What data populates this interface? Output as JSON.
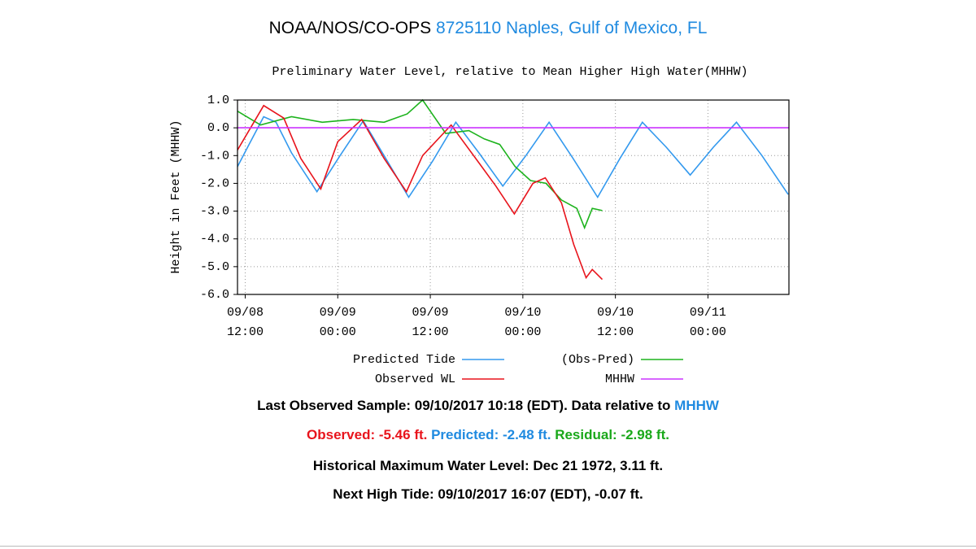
{
  "header": {
    "org": "NOAA/NOS/CO-OPS",
    "station": "8725110 Naples, Gulf of Mexico, FL"
  },
  "chart_data": {
    "type": "line",
    "title": "Preliminary Water Level, relative to Mean Higher High Water(MHHW)",
    "y_label": "Height in Feet (MHHW)",
    "xlim": [
      11,
      82.5
    ],
    "xticks": [
      {
        "value": 12,
        "label": "09/08 12:00"
      },
      {
        "value": 24,
        "label": "09/09 00:00"
      },
      {
        "value": 36,
        "label": "09/09 12:00"
      },
      {
        "value": 48,
        "label": "09/10 00:00"
      },
      {
        "value": 60,
        "label": "09/10 12:00"
      },
      {
        "value": 72,
        "label": "09/11 00:00"
      }
    ],
    "ylim": [
      -6,
      1
    ],
    "yticks": [
      {
        "value": 1,
        "label": "1.0"
      },
      {
        "value": 0,
        "label": "0.0"
      },
      {
        "value": -1,
        "label": "-1.0"
      },
      {
        "value": -2,
        "label": "-2.0"
      },
      {
        "value": -3,
        "label": "-3.0"
      },
      {
        "value": -4,
        "label": "-4.0"
      },
      {
        "value": -5,
        "label": "-5.0"
      },
      {
        "value": -6,
        "label": "-6.0"
      }
    ],
    "grid": true,
    "series": [
      {
        "name": "Predicted Tide",
        "color": "#3399ee",
        "x": [
          11,
          12.5,
          14.4,
          16,
          18,
          21.3,
          24.3,
          27.3,
          30,
          33.2,
          36.3,
          39.3,
          42.3,
          45.4,
          48.4,
          51.4,
          54.5,
          57.7,
          60.6,
          63.5,
          66.6,
          69.7,
          72.7,
          75.7,
          79,
          82.4
        ],
        "values": [
          -1.4,
          -0.6,
          0.4,
          0.2,
          -0.9,
          -2.3,
          -1.0,
          0.25,
          -1.0,
          -2.5,
          -1.2,
          0.2,
          -0.9,
          -2.1,
          -1.0,
          0.2,
          -1.1,
          -2.5,
          -1.1,
          0.2,
          -0.7,
          -1.7,
          -0.7,
          0.2,
          -1.0,
          -2.4
        ]
      },
      {
        "name": "(Obs-Pred)",
        "color": "#1db31d",
        "x": [
          11,
          14,
          18,
          22,
          26,
          30,
          33,
          35,
          37,
          38,
          41,
          43,
          45,
          47,
          49,
          51,
          53,
          55,
          56,
          57,
          58.3
        ],
        "values": [
          0.6,
          0.1,
          0.4,
          0.2,
          0.3,
          0.2,
          0.5,
          1.0,
          0.2,
          -0.2,
          -0.1,
          -0.4,
          -0.6,
          -1.4,
          -1.9,
          -2.0,
          -2.6,
          -2.9,
          -3.6,
          -2.9,
          -2.98
        ]
      },
      {
        "name": "Observed WL",
        "color": "#e8141c",
        "x": [
          11,
          14.4,
          17,
          19.2,
          21.8,
          24,
          27.1,
          30,
          32.9,
          35,
          38.7,
          42.4,
          44.5,
          46.9,
          49.3,
          50.9,
          53,
          54.6,
          56.2,
          57,
          58.3
        ],
        "values": [
          -0.8,
          0.8,
          0.35,
          -1.1,
          -2.2,
          -0.5,
          0.3,
          -1.1,
          -2.3,
          -1.0,
          0.1,
          -1.3,
          -2.1,
          -3.1,
          -2.0,
          -1.8,
          -2.7,
          -4.2,
          -5.4,
          -5.1,
          -5.46
        ]
      },
      {
        "name": "MHHW",
        "color": "#cc33ff",
        "x": [
          11,
          82.5
        ],
        "values": [
          0,
          0
        ]
      }
    ]
  },
  "footer": {
    "last_observed": "Last Observed Sample: 09/10/2017 10:18 (EDT). Data relative to",
    "datum": "MHHW",
    "observed": "Observed: -5.46 ft.",
    "predicted": "Predicted: -2.48 ft.",
    "residual": "Residual: -2.98 ft.",
    "historical_max": "Historical Maximum Water Level: Dec 21 1972, 3.11 ft.",
    "next_high_tide": "Next High Tide: 09/10/2017 16:07 (EDT), -0.07 ft."
  }
}
